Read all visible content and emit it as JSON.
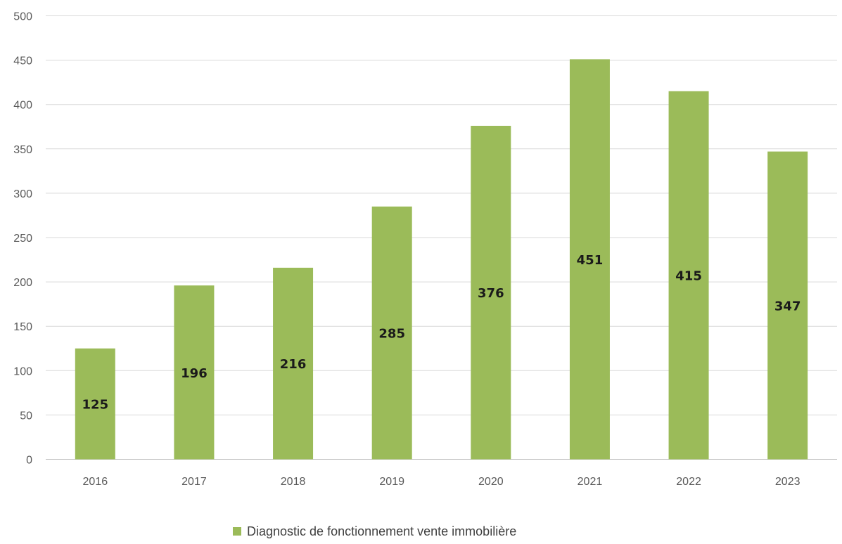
{
  "chart_data": {
    "type": "bar",
    "categories": [
      "2016",
      "2017",
      "2018",
      "2019",
      "2020",
      "2021",
      "2022",
      "2023"
    ],
    "series": [
      {
        "name": "Diagnostic de fonctionnement vente immobilière",
        "values": [
          125,
          196,
          216,
          285,
          376,
          451,
          415,
          347
        ],
        "color": "#9bbb59"
      }
    ],
    "title": "",
    "xlabel": "",
    "ylabel": "",
    "ylim": [
      0,
      500
    ],
    "yticks": [
      0,
      50,
      100,
      150,
      200,
      250,
      300,
      350,
      400,
      450,
      500
    ],
    "grid": true,
    "legend_position": "bottom",
    "data_labels": true
  }
}
